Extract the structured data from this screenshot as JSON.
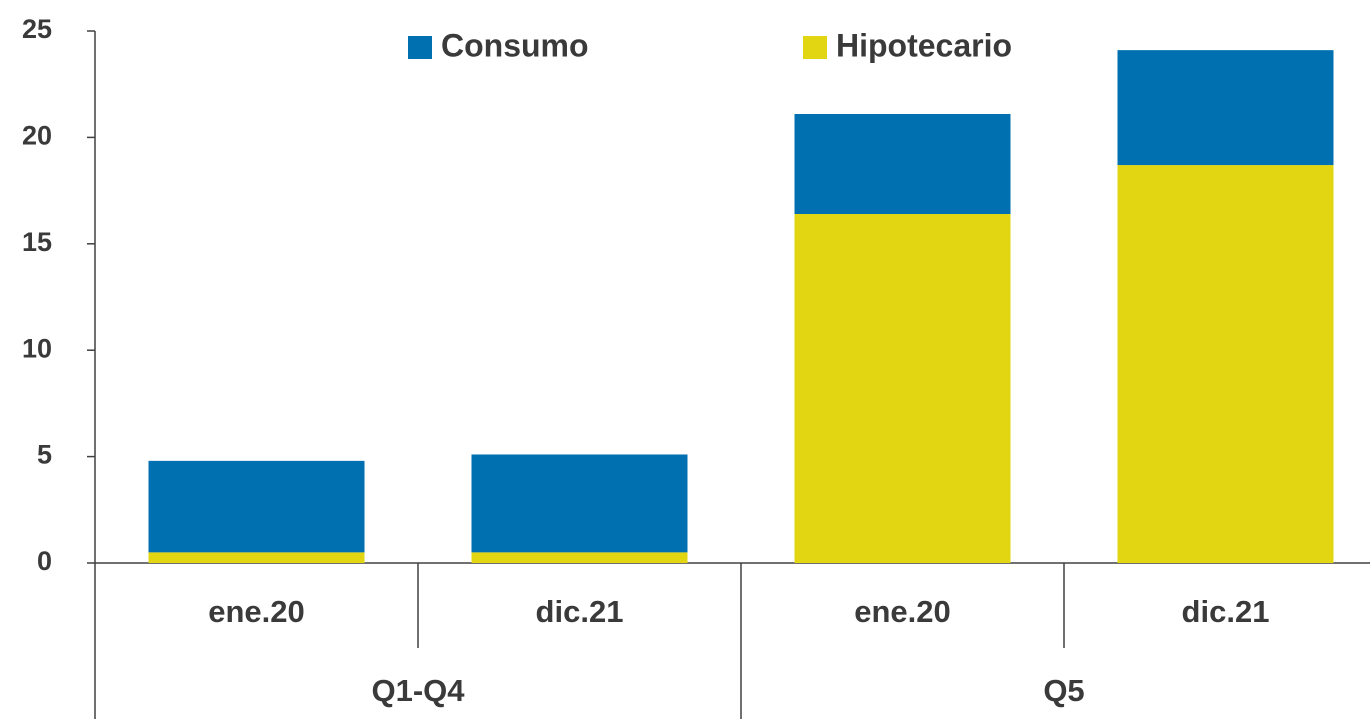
{
  "chart_data": {
    "type": "stacked_bar",
    "groups": [
      {
        "name": "Q1-Q4",
        "categories": [
          "ene.20",
          "dic.21"
        ]
      },
      {
        "name": "Q5",
        "categories": [
          "ene.20",
          "dic.21"
        ]
      }
    ],
    "series": [
      {
        "name": "Hipotecario",
        "color": "#e2d511",
        "values": [
          0.5,
          0.5,
          16.4,
          18.7
        ]
      },
      {
        "name": "Consumo",
        "color": "#0070b0",
        "values": [
          4.3,
          4.6,
          4.7,
          5.4
        ]
      }
    ],
    "legend_order": [
      "Consumo",
      "Hipotecario"
    ],
    "ylim": [
      0,
      25
    ],
    "yticks": [
      0,
      5,
      10,
      15,
      20,
      25
    ],
    "grid": false
  }
}
